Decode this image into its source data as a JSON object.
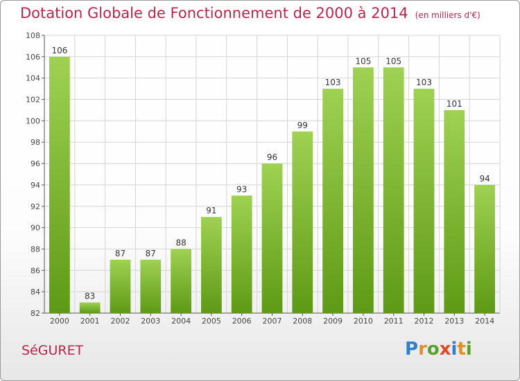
{
  "title": "Dotation Globale de Fonctionnement de 2000 à 2014",
  "unit_note": "(en milliers d'€)",
  "commune": "SéGURET",
  "logo": {
    "text": "Proxiti",
    "letters": [
      {
        "ch": "P",
        "color": "#2f7fd0"
      },
      {
        "ch": "r",
        "color": "#e0902a"
      },
      {
        "ch": "o",
        "color": "#5aa02c"
      },
      {
        "ch": "x",
        "color": "#e04a2a"
      },
      {
        "ch": "i",
        "color": "#2f7fd0"
      },
      {
        "ch": "t",
        "color": "#e0902a"
      },
      {
        "ch": "i",
        "color": "#5aa02c"
      }
    ]
  },
  "colors": {
    "bar_top": "#9fd152",
    "bar_bottom": "#5e9a16",
    "title": "#b8244a",
    "grid": "#d4d4d4",
    "axis": "#555555"
  },
  "chart_data": {
    "type": "bar",
    "title": "Dotation Globale de Fonctionnement de 2000 à 2014",
    "categories": [
      "2000",
      "2001",
      "2002",
      "2003",
      "2004",
      "2005",
      "2006",
      "2007",
      "2008",
      "2009",
      "2010",
      "2011",
      "2012",
      "2013",
      "2014"
    ],
    "values": [
      106,
      83,
      87,
      87,
      88,
      91,
      93,
      96,
      99,
      103,
      105,
      105,
      103,
      101,
      94
    ],
    "ylim": [
      82,
      108
    ],
    "yticks": [
      82,
      84,
      86,
      88,
      90,
      92,
      94,
      96,
      98,
      100,
      102,
      104,
      106,
      108
    ],
    "grid": true,
    "xlabel": "",
    "ylabel": ""
  }
}
